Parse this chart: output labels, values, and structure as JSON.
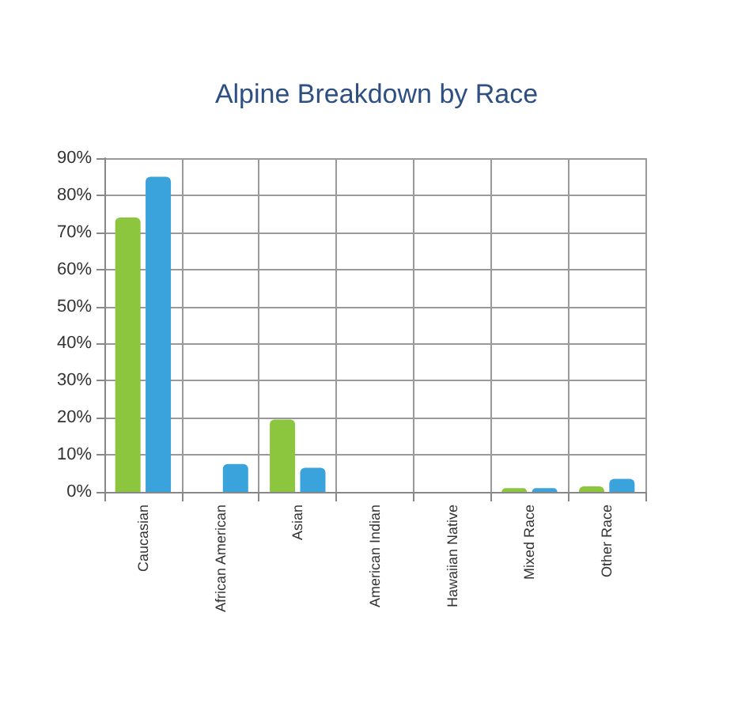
{
  "chart_data": {
    "type": "bar",
    "title": "Alpine Breakdown by Race",
    "categories": [
      "Caucasian",
      "African American",
      "Asian",
      "American Indian",
      "Hawaiian Native",
      "Mixed Race",
      "Other Race"
    ],
    "series": [
      {
        "color": "#8cc63f",
        "values": [
          74,
          0,
          19.5,
          0,
          0,
          1,
          1.5
        ]
      },
      {
        "color": "#3aa3dc",
        "values": [
          85,
          7.5,
          6.5,
          0,
          0,
          1,
          3.5
        ]
      }
    ],
    "ylim": [
      0,
      90
    ],
    "yticks": [
      {
        "value": 0,
        "label": "0%"
      },
      {
        "value": 10,
        "label": "10%"
      },
      {
        "value": 20,
        "label": "20%"
      },
      {
        "value": 30,
        "label": "30%"
      },
      {
        "value": 40,
        "label": "40%"
      },
      {
        "value": 50,
        "label": "50%"
      },
      {
        "value": 60,
        "label": "60%"
      },
      {
        "value": 70,
        "label": "70%"
      },
      {
        "value": 80,
        "label": "80%"
      },
      {
        "value": 90,
        "label": "90%"
      }
    ],
    "grid": true
  }
}
